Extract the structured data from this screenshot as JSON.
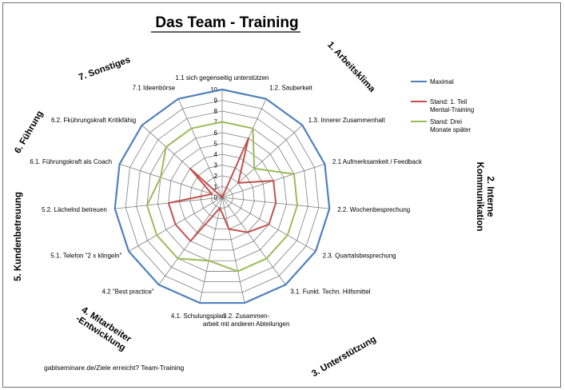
{
  "chart_data": {
    "type": "radar",
    "title": "Das Team - Training",
    "axes": [
      "1.1 sich gegenseitig unterstützen",
      "1.2. Sauberkeit",
      "1.3. Innerer Zusammenhalt",
      "2.1 Aufmerksamkeit / Feedback",
      "2.2. Wochenbesprechung",
      "2.3. Quartalsbesprechung",
      "3.1. Funkt. Techn. Hilfsmittel",
      "3.2. Zusammen-\narbeit mit anderen Abteilungen",
      "4.1. Schulungsplan",
      "4.2 \"Best practice\"",
      "5.1. Telefon \"2 x klingeln\"",
      "5.2. Lächelnd betreuen",
      "6.1. Führungskraft als Coach",
      "6.2. Fkührungskraft Kritikfähig",
      "7.1 Ideenbörse"
    ],
    "rlim": [
      0,
      10
    ],
    "ticks": [
      "0",
      "1",
      "2",
      "3",
      "4",
      "5",
      "6",
      "7",
      "8",
      "9",
      "10"
    ],
    "series": [
      {
        "name": "Maximal",
        "color": "#4f81bd",
        "values": [
          10,
          10,
          10,
          10,
          10,
          10,
          10,
          10,
          10,
          10,
          10,
          10,
          10,
          10,
          10
        ]
      },
      {
        "name": "Stand: 1. Teil\nMental-Training",
        "color": "#c0504d",
        "values": [
          0,
          6,
          2,
          5,
          5,
          5,
          4,
          3,
          1,
          5,
          5,
          5,
          1,
          4,
          0
        ]
      },
      {
        "name": "Stand: Drei\nMonate später",
        "color": "#9bbb59",
        "values": [
          7,
          7,
          4,
          7,
          7,
          7,
          7,
          7,
          6,
          7,
          7,
          7,
          6,
          7,
          7
        ]
      }
    ],
    "grid": true,
    "legend": "right",
    "category_labels": [
      "1. Arbeitsklima",
      "2. Interne\nKommunikation",
      "3. Unterstützung",
      "4. Mitarbeiter\n-Entwicklung",
      "5. Kundenbetreuung",
      "6. Führung",
      "7. Sonstiges"
    ]
  },
  "source_text": "gablseminare.de/Ziele erreicht? Team-Training"
}
